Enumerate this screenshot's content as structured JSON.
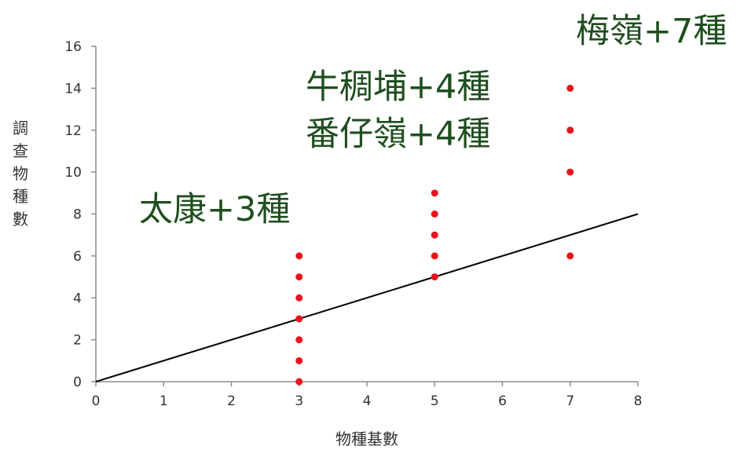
{
  "chart_data": {
    "type": "scatter",
    "xlabel": "物種基數",
    "ylabel": "調查物種數",
    "xlim": [
      0,
      8
    ],
    "ylim": [
      0,
      16
    ],
    "x_ticks": [
      0,
      1,
      2,
      3,
      4,
      5,
      6,
      7,
      8
    ],
    "y_ticks": [
      0,
      2,
      4,
      6,
      8,
      10,
      12,
      14,
      16
    ],
    "grid": false,
    "point_color": "#e8141c",
    "line_color": "#000000",
    "annotation_color": "#1f4e1f",
    "points": [
      {
        "x": 3,
        "y": 0
      },
      {
        "x": 3,
        "y": 1
      },
      {
        "x": 3,
        "y": 2
      },
      {
        "x": 3,
        "y": 3
      },
      {
        "x": 3,
        "y": 4
      },
      {
        "x": 3,
        "y": 5
      },
      {
        "x": 3,
        "y": 6
      },
      {
        "x": 5,
        "y": 5
      },
      {
        "x": 5,
        "y": 6
      },
      {
        "x": 5,
        "y": 7
      },
      {
        "x": 5,
        "y": 8
      },
      {
        "x": 5,
        "y": 9
      },
      {
        "x": 7,
        "y": 6
      },
      {
        "x": 7,
        "y": 10
      },
      {
        "x": 7,
        "y": 12
      },
      {
        "x": 7,
        "y": 14
      }
    ],
    "reference_line": {
      "x": [
        0,
        8
      ],
      "y": [
        0,
        8
      ]
    },
    "annotations": [
      {
        "text": "太康+3種"
      },
      {
        "text": "牛稠埔+4種"
      },
      {
        "text": "番仔嶺+4種"
      },
      {
        "text": "梅嶺+7種"
      }
    ]
  }
}
